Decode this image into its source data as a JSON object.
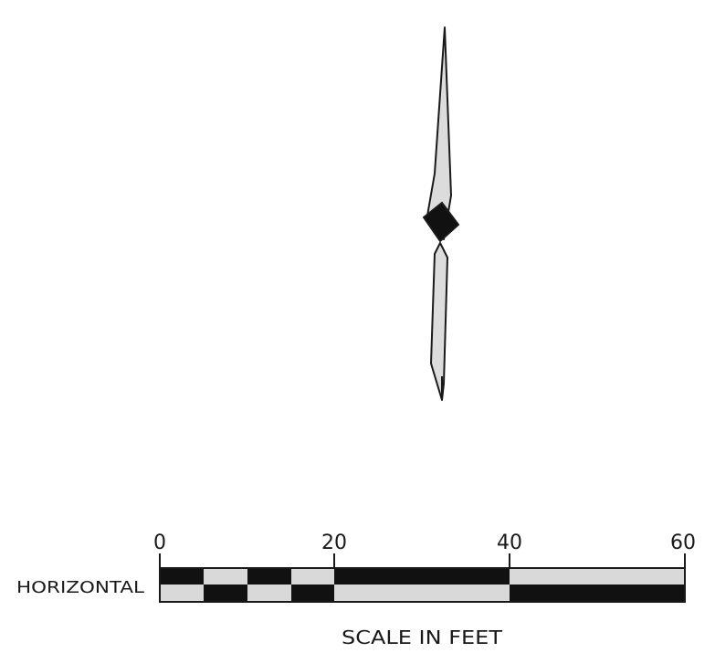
{
  "scale": {
    "ticks": [
      "0",
      "20",
      "40",
      "60"
    ],
    "row_label": "HORIZONTAL",
    "caption": "SCALE IN FEET"
  },
  "colors": {
    "ink": "#1a1a1a",
    "light_fill": "#d9d9d9",
    "dark_fill": "#111111"
  }
}
